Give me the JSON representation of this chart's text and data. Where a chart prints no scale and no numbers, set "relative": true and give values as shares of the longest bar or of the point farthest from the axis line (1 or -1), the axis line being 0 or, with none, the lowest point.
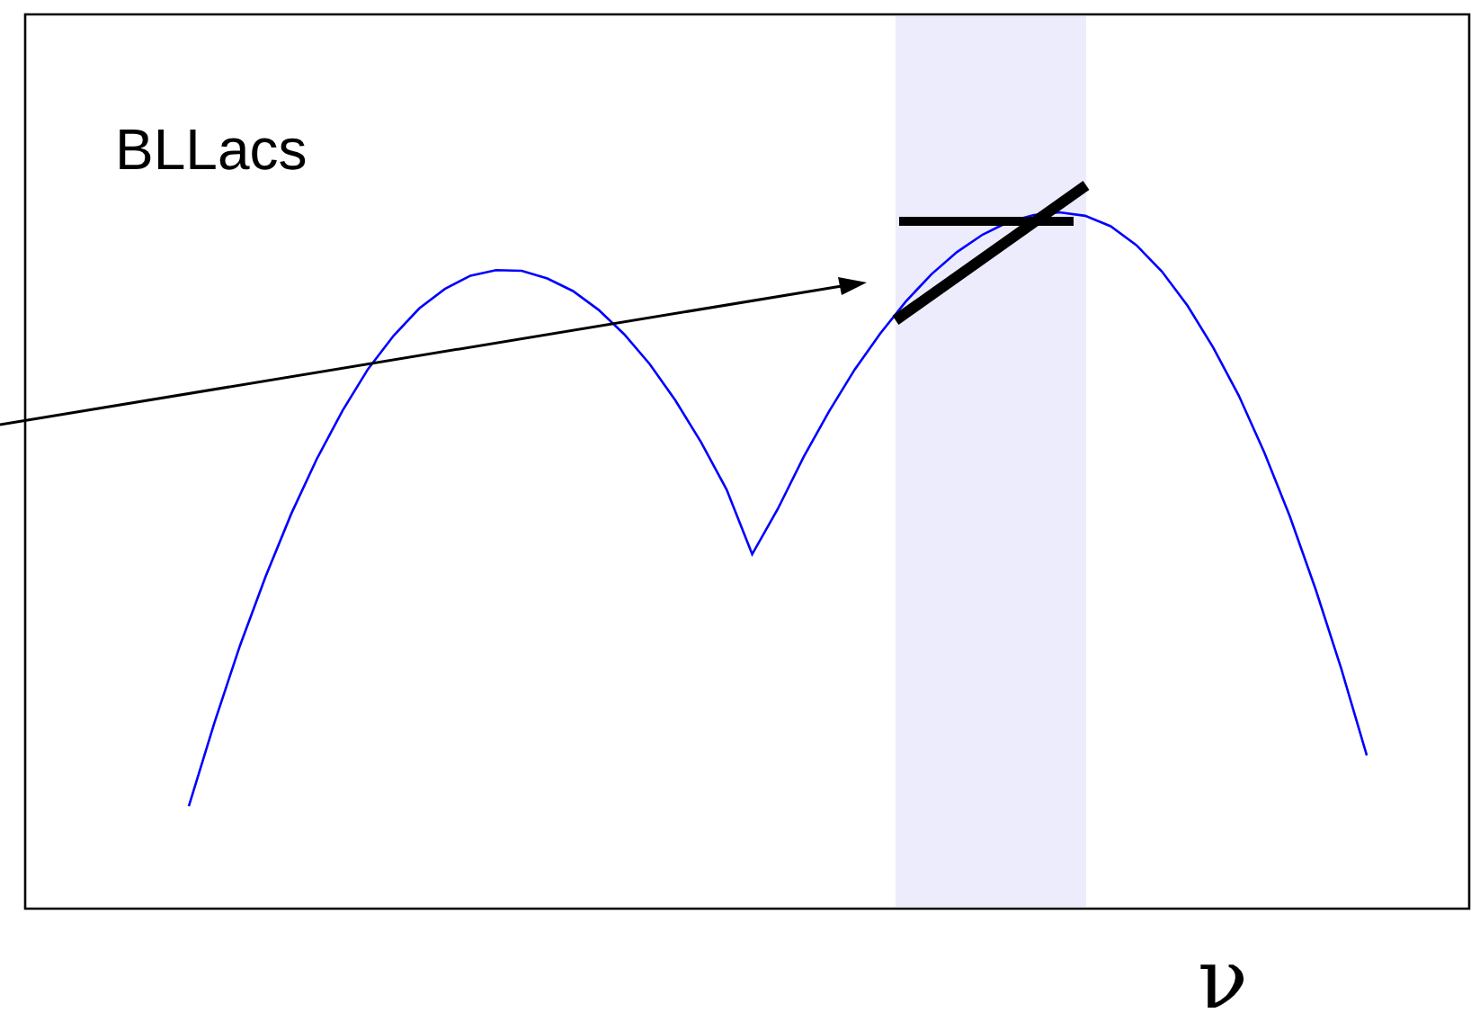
{
  "chart_data": {
    "type": "line",
    "relative": true,
    "xlabel": "ν",
    "annotations": [
      "BLLacs"
    ],
    "categories": [
      null,
      null,
      null,
      null,
      null,
      null,
      null,
      null,
      null,
      null,
      null,
      null,
      null,
      null,
      null,
      null,
      null,
      null,
      null,
      null,
      null,
      null,
      null,
      null,
      null,
      null,
      null,
      null,
      null,
      null,
      null,
      null,
      null,
      null,
      null,
      null,
      null,
      null,
      null,
      null,
      null,
      null,
      null,
      null,
      null,
      null,
      null
    ],
    "values": [
      0.147,
      0.267,
      0.378,
      0.477,
      0.567,
      0.646,
      0.715,
      0.775,
      0.823,
      0.862,
      0.89,
      0.909,
      0.917,
      0.916,
      0.905,
      0.887,
      0.86,
      0.825,
      0.782,
      0.73,
      0.67,
      0.602,
      0.509,
      0.574,
      0.648,
      0.714,
      0.774,
      0.826,
      0.872,
      0.911,
      0.943,
      0.968,
      0.986,
      0.996,
      1,
      0.995,
      0.98,
      0.953,
      0.915,
      0.866,
      0.806,
      0.737,
      0.655,
      0.563,
      0.459,
      0.345,
      0.22
    ],
    "color": "#0000ff"
  }
}
